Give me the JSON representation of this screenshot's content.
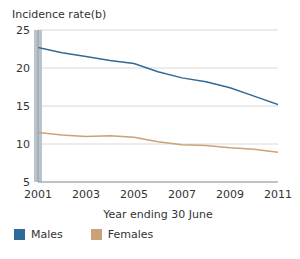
{
  "chart_data": {
    "type": "line",
    "y_label": "Incidence rate(b)",
    "x_label": "Year ending 30 June",
    "x": [
      2001,
      2002,
      2003,
      2004,
      2005,
      2006,
      2007,
      2008,
      2009,
      2010,
      2011
    ],
    "series": [
      {
        "name": "Males",
        "color": "#2f6b9a",
        "values": [
          22.7,
          22.0,
          21.5,
          21.0,
          20.6,
          19.5,
          18.7,
          18.2,
          17.4,
          16.3,
          15.2
        ]
      },
      {
        "name": "Females",
        "color": "#c9a27a",
        "values": [
          11.5,
          11.2,
          11.0,
          11.1,
          10.9,
          10.3,
          9.9,
          9.8,
          9.5,
          9.3,
          8.9
        ]
      }
    ],
    "xlim": [
      2001,
      2011
    ],
    "xticks": [
      2001,
      2003,
      2005,
      2007,
      2009,
      2011
    ],
    "ylim": [
      5,
      25
    ],
    "yticks": [
      5,
      10,
      15,
      20,
      25
    ],
    "grid": true,
    "legend": "bottom"
  }
}
